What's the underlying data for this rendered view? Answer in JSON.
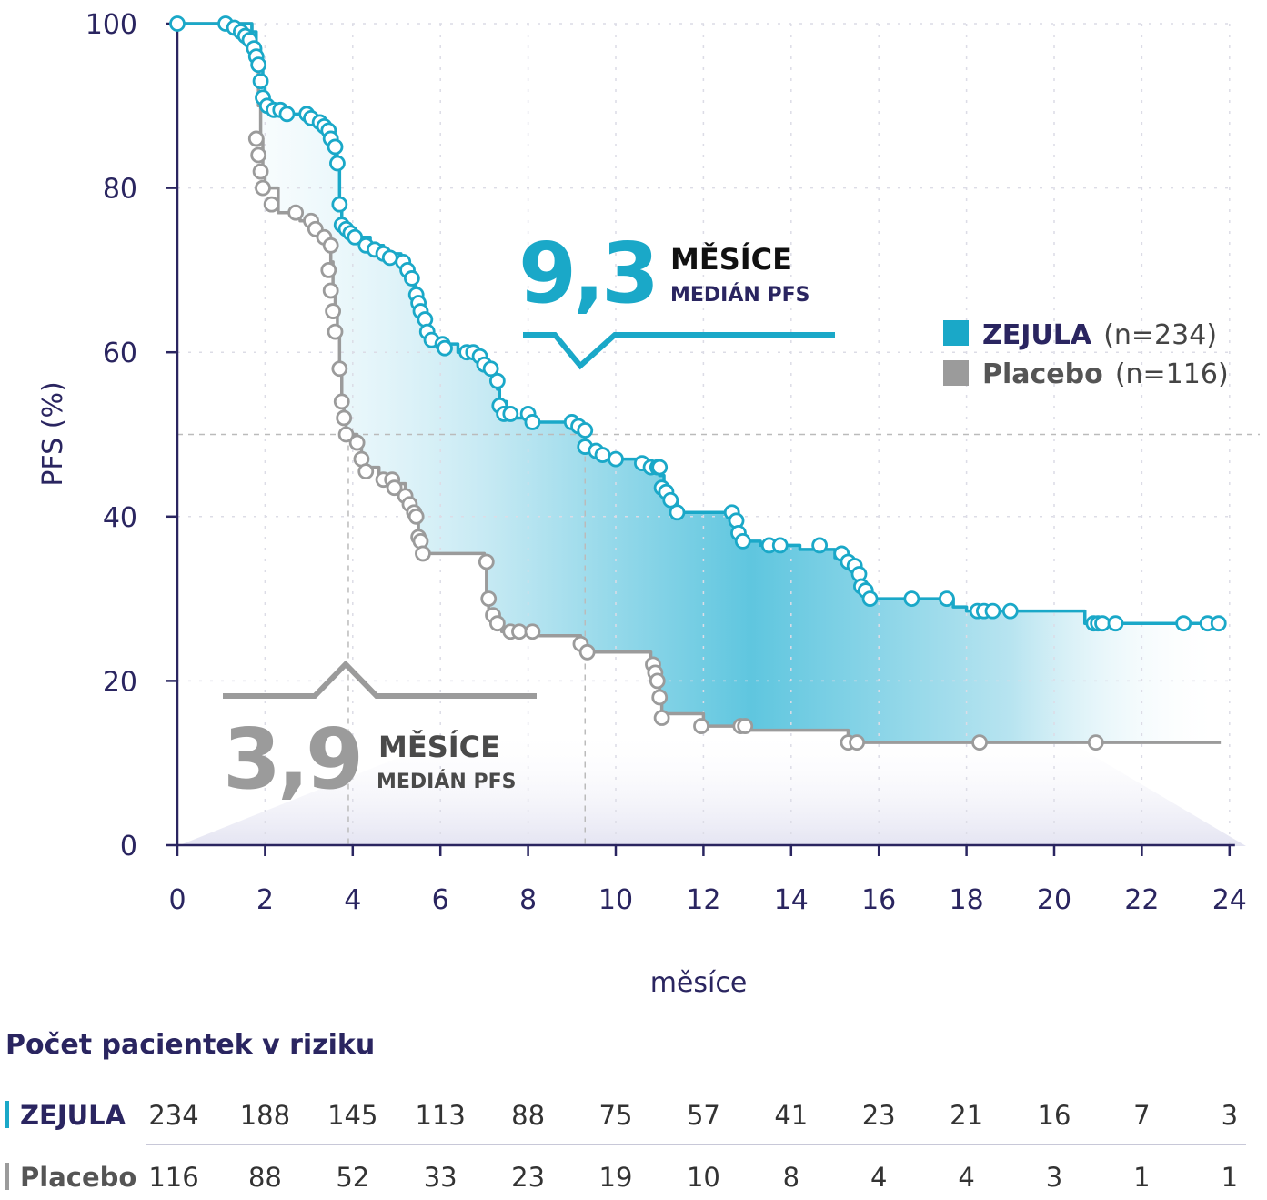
{
  "chart_data": {
    "type": "line",
    "ylabel": "PFS (%)",
    "xlabel": "měsíce",
    "xlim": [
      0,
      24
    ],
    "ylim": [
      0,
      100
    ],
    "x_ticks": [
      "0",
      "2",
      "4",
      "6",
      "8",
      "10",
      "12",
      "14",
      "16",
      "18",
      "20",
      "22",
      "24"
    ],
    "y_ticks": [
      "0",
      "20",
      "40",
      "60",
      "80",
      "100"
    ],
    "median_reference_y": 50,
    "series": [
      {
        "name": "ZEJULA",
        "n_label": "(n=234)",
        "color": "#1aa8c8",
        "median_value": "9,3",
        "median_x": 9.3,
        "steps": [
          [
            0,
            100
          ],
          [
            1.6,
            100
          ],
          [
            1.7,
            99
          ],
          [
            1.8,
            97
          ],
          [
            1.9,
            95
          ],
          [
            1.95,
            93
          ],
          [
            2.0,
            90
          ],
          [
            2.3,
            89
          ],
          [
            2.9,
            89
          ],
          [
            3.1,
            88
          ],
          [
            3.4,
            87
          ],
          [
            3.55,
            86
          ],
          [
            3.6,
            84
          ],
          [
            3.65,
            83
          ],
          [
            3.7,
            78
          ],
          [
            3.75,
            76
          ],
          [
            3.8,
            75
          ],
          [
            4.0,
            74
          ],
          [
            4.4,
            73
          ],
          [
            4.7,
            72
          ],
          [
            5.1,
            71
          ],
          [
            5.2,
            70.5
          ],
          [
            5.3,
            69.5
          ],
          [
            5.4,
            68
          ],
          [
            5.45,
            66
          ],
          [
            5.5,
            65
          ],
          [
            5.6,
            64
          ],
          [
            5.7,
            63
          ],
          [
            5.75,
            61.5
          ],
          [
            6.1,
            61
          ],
          [
            6.4,
            60
          ],
          [
            6.9,
            59.5
          ],
          [
            7.0,
            58
          ],
          [
            7.2,
            57
          ],
          [
            7.3,
            55.5
          ],
          [
            7.35,
            54
          ],
          [
            7.5,
            53
          ],
          [
            7.6,
            52
          ],
          [
            8.0,
            51.5
          ],
          [
            9.0,
            51
          ],
          [
            9.2,
            50
          ],
          [
            9.3,
            48
          ],
          [
            9.6,
            47
          ],
          [
            10.5,
            46.5
          ],
          [
            10.6,
            46
          ],
          [
            11.0,
            45
          ],
          [
            11.1,
            43
          ],
          [
            11.2,
            42
          ],
          [
            11.4,
            40.5
          ],
          [
            12.6,
            39.5
          ],
          [
            12.7,
            38
          ],
          [
            12.8,
            37
          ],
          [
            13.3,
            36.5
          ],
          [
            14.2,
            36
          ],
          [
            15.0,
            35
          ],
          [
            15.3,
            34
          ],
          [
            15.5,
            33
          ],
          [
            15.6,
            31.5
          ],
          [
            15.7,
            30
          ],
          [
            17.7,
            29
          ],
          [
            18.0,
            28.5
          ],
          [
            20.7,
            27
          ],
          [
            22.0,
            27
          ],
          [
            23.8,
            27
          ]
        ],
        "censored": [
          [
            0,
            100
          ],
          [
            1.1,
            100
          ],
          [
            1.3,
            99.5
          ],
          [
            1.45,
            99
          ],
          [
            1.55,
            98.5
          ],
          [
            1.65,
            98
          ],
          [
            1.75,
            97
          ],
          [
            1.8,
            96
          ],
          [
            1.85,
            95
          ],
          [
            1.9,
            93
          ],
          [
            1.95,
            91
          ],
          [
            2.05,
            90
          ],
          [
            2.2,
            89.5
          ],
          [
            2.35,
            89.5
          ],
          [
            2.5,
            89
          ],
          [
            2.95,
            89
          ],
          [
            3.05,
            88.5
          ],
          [
            3.25,
            88
          ],
          [
            3.35,
            87.5
          ],
          [
            3.45,
            87
          ],
          [
            3.5,
            86
          ],
          [
            3.6,
            85
          ],
          [
            3.65,
            83
          ],
          [
            3.7,
            78
          ],
          [
            3.75,
            75.5
          ],
          [
            3.85,
            75
          ],
          [
            3.95,
            74.5
          ],
          [
            4.05,
            74
          ],
          [
            4.3,
            73
          ],
          [
            4.5,
            72.5
          ],
          [
            4.7,
            72
          ],
          [
            4.85,
            71.5
          ],
          [
            5.15,
            71
          ],
          [
            5.25,
            70
          ],
          [
            5.35,
            69
          ],
          [
            5.45,
            67
          ],
          [
            5.5,
            66
          ],
          [
            5.55,
            65
          ],
          [
            5.65,
            64
          ],
          [
            5.7,
            62.5
          ],
          [
            5.8,
            61.5
          ],
          [
            6.05,
            61
          ],
          [
            6.1,
            60.5
          ],
          [
            6.6,
            60
          ],
          [
            6.75,
            60
          ],
          [
            6.9,
            59.5
          ],
          [
            7.0,
            58.5
          ],
          [
            7.15,
            58
          ],
          [
            7.3,
            56.5
          ],
          [
            7.35,
            53.5
          ],
          [
            7.45,
            52.5
          ],
          [
            7.6,
            52.5
          ],
          [
            8.0,
            52.5
          ],
          [
            8.1,
            51.5
          ],
          [
            9.0,
            51.5
          ],
          [
            9.15,
            51
          ],
          [
            9.3,
            50.5
          ],
          [
            9.3,
            48.5
          ],
          [
            9.55,
            48
          ],
          [
            9.7,
            47.5
          ],
          [
            10.0,
            47
          ],
          [
            10.6,
            46.5
          ],
          [
            10.8,
            46
          ],
          [
            10.95,
            46
          ],
          [
            11.0,
            46
          ],
          [
            11.05,
            43.5
          ],
          [
            11.15,
            43
          ],
          [
            11.25,
            42
          ],
          [
            11.4,
            40.5
          ],
          [
            12.65,
            40.5
          ],
          [
            12.75,
            39.5
          ],
          [
            12.8,
            38
          ],
          [
            12.9,
            37
          ],
          [
            13.5,
            36.5
          ],
          [
            13.75,
            36.5
          ],
          [
            14.65,
            36.5
          ],
          [
            15.15,
            35.5
          ],
          [
            15.3,
            34.5
          ],
          [
            15.45,
            34
          ],
          [
            15.55,
            33
          ],
          [
            15.6,
            31.5
          ],
          [
            15.7,
            31
          ],
          [
            15.8,
            30
          ],
          [
            16.75,
            30
          ],
          [
            17.55,
            30
          ],
          [
            18.25,
            28.5
          ],
          [
            18.4,
            28.5
          ],
          [
            18.6,
            28.5
          ],
          [
            19.0,
            28.5
          ],
          [
            20.9,
            27
          ],
          [
            21.0,
            27
          ],
          [
            21.1,
            27
          ],
          [
            21.4,
            27
          ],
          [
            22.95,
            27
          ],
          [
            23.5,
            27
          ],
          [
            23.75,
            27
          ]
        ]
      },
      {
        "name": "Placebo",
        "n_label": "(n=116)",
        "color": "#9b9b9b",
        "median_value": "3,9",
        "median_x": 3.9,
        "steps": [
          [
            0,
            100
          ],
          [
            1.6,
            100
          ],
          [
            1.7,
            98
          ],
          [
            1.8,
            95
          ],
          [
            1.85,
            90
          ],
          [
            1.9,
            86
          ],
          [
            1.95,
            82
          ],
          [
            2.0,
            80
          ],
          [
            2.3,
            77
          ],
          [
            2.8,
            76
          ],
          [
            3.2,
            74
          ],
          [
            3.4,
            73
          ],
          [
            3.5,
            71
          ],
          [
            3.55,
            68
          ],
          [
            3.6,
            65
          ],
          [
            3.65,
            62
          ],
          [
            3.7,
            58
          ],
          [
            3.75,
            54
          ],
          [
            3.8,
            52
          ],
          [
            3.85,
            50
          ],
          [
            4.1,
            49
          ],
          [
            4.2,
            47
          ],
          [
            4.3,
            46
          ],
          [
            4.6,
            45
          ],
          [
            5.0,
            44
          ],
          [
            5.2,
            42
          ],
          [
            5.4,
            40
          ],
          [
            5.5,
            37
          ],
          [
            5.55,
            35.5
          ],
          [
            7.0,
            34
          ],
          [
            7.05,
            30
          ],
          [
            7.1,
            28
          ],
          [
            7.2,
            27
          ],
          [
            7.4,
            26
          ],
          [
            8.0,
            25.5
          ],
          [
            9.2,
            24.5
          ],
          [
            9.3,
            23.5
          ],
          [
            10.8,
            22
          ],
          [
            10.85,
            21
          ],
          [
            10.9,
            20
          ],
          [
            11.0,
            18
          ],
          [
            11.05,
            16
          ],
          [
            12.0,
            14.5
          ],
          [
            12.9,
            14
          ],
          [
            15.3,
            13
          ],
          [
            15.5,
            12.5
          ],
          [
            17.8,
            12.5
          ],
          [
            21.0,
            12.5
          ],
          [
            23.8,
            12.5
          ]
        ],
        "censored": [
          [
            1.8,
            86
          ],
          [
            1.85,
            84
          ],
          [
            1.9,
            82
          ],
          [
            1.95,
            80
          ],
          [
            2.15,
            78
          ],
          [
            2.7,
            77
          ],
          [
            3.05,
            76
          ],
          [
            3.15,
            75
          ],
          [
            3.35,
            74
          ],
          [
            3.5,
            73
          ],
          [
            3.45,
            70
          ],
          [
            3.5,
            67.5
          ],
          [
            3.55,
            65
          ],
          [
            3.6,
            62.5
          ],
          [
            3.7,
            58
          ],
          [
            3.75,
            54
          ],
          [
            3.8,
            52
          ],
          [
            3.85,
            50
          ],
          [
            4.1,
            49
          ],
          [
            4.2,
            47
          ],
          [
            4.3,
            45.5
          ],
          [
            4.7,
            44.5
          ],
          [
            4.9,
            44.5
          ],
          [
            4.95,
            43.5
          ],
          [
            5.2,
            42.5
          ],
          [
            5.3,
            41.5
          ],
          [
            5.4,
            40.5
          ],
          [
            5.45,
            40
          ],
          [
            5.5,
            37.5
          ],
          [
            5.55,
            37
          ],
          [
            5.6,
            35.5
          ],
          [
            7.05,
            34.5
          ],
          [
            7.1,
            30
          ],
          [
            7.2,
            28
          ],
          [
            7.3,
            27
          ],
          [
            7.6,
            26
          ],
          [
            7.8,
            26
          ],
          [
            8.1,
            26
          ],
          [
            9.2,
            24.5
          ],
          [
            9.35,
            23.5
          ],
          [
            10.85,
            22
          ],
          [
            10.9,
            21
          ],
          [
            10.95,
            20
          ],
          [
            11.0,
            18
          ],
          [
            11.05,
            15.5
          ],
          [
            11.95,
            14.5
          ],
          [
            12.85,
            14.5
          ],
          [
            12.95,
            14.5
          ],
          [
            15.3,
            12.5
          ],
          [
            15.5,
            12.5
          ],
          [
            18.3,
            12.5
          ],
          [
            20.95,
            12.5
          ]
        ]
      }
    ]
  },
  "median_labels": {
    "mesice": "MĚSÍCE",
    "subtitle": "MEDIÁN PFS"
  },
  "risk_table": {
    "title": "Počet pacientek v riziku",
    "rows": [
      {
        "label": "ZEJULA",
        "color": "#1aa8c8",
        "label_color": "#2a2560",
        "values": [
          "234",
          "188",
          "145",
          "113",
          "88",
          "75",
          "57",
          "41",
          "23",
          "21",
          "16",
          "7",
          "3"
        ]
      },
      {
        "label": "Placebo",
        "color": "#9b9b9b",
        "label_color": "#555555",
        "values": [
          "116",
          "88",
          "52",
          "33",
          "23",
          "19",
          "10",
          "8",
          "4",
          "4",
          "3",
          "1",
          "1"
        ]
      }
    ]
  }
}
